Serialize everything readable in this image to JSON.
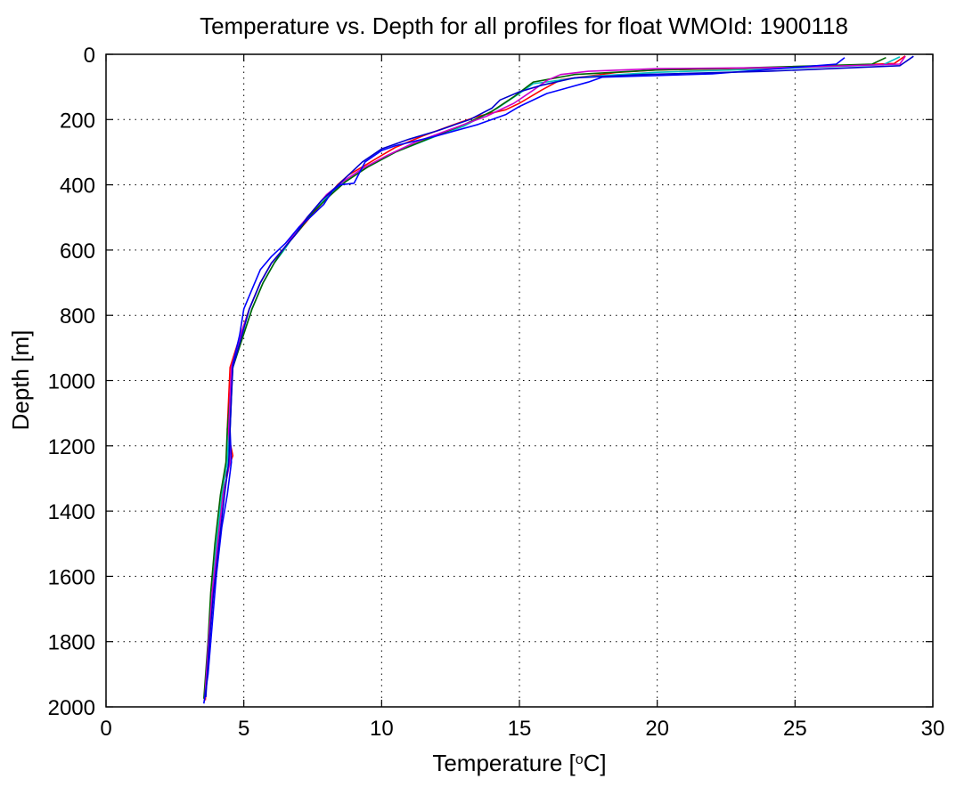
{
  "chart_data": {
    "type": "line",
    "title": "Temperature vs. Depth for all profiles for float WMOId: 1900118",
    "xlabel": "Temperature [°C]",
    "xlabel_parts": {
      "main": "Temperature [",
      "sup": "o",
      "end": "C]"
    },
    "ylabel": "Depth [m]",
    "xlim": [
      0,
      30
    ],
    "ylim": [
      0,
      2000
    ],
    "y_reversed": true,
    "grid": true,
    "grid_style": "dotted",
    "x_ticks": [
      "0",
      "5",
      "10",
      "15",
      "20",
      "25",
      "30"
    ],
    "y_ticks": [
      "0",
      "200",
      "400",
      "600",
      "800",
      "1000",
      "1200",
      "1400",
      "1600",
      "1800",
      "2000"
    ],
    "series": [
      {
        "color": "#ff0000",
        "points": [
          [
            29.0,
            5
          ],
          [
            28.6,
            28
          ],
          [
            25.0,
            40
          ],
          [
            20.0,
            48
          ],
          [
            18.5,
            56
          ],
          [
            16.5,
            78
          ],
          [
            15.8,
            110
          ],
          [
            15.0,
            150
          ],
          [
            14.5,
            170
          ],
          [
            13.5,
            190
          ],
          [
            12.8,
            210
          ],
          [
            11.5,
            250
          ],
          [
            10.5,
            285
          ],
          [
            10.0,
            310
          ],
          [
            9.5,
            335
          ],
          [
            8.8,
            370
          ],
          [
            8.4,
            400
          ],
          [
            8.0,
            440
          ],
          [
            7.6,
            480
          ],
          [
            7.2,
            520
          ],
          [
            6.8,
            560
          ],
          [
            6.4,
            600
          ],
          [
            6.0,
            640
          ],
          [
            5.6,
            700
          ],
          [
            5.2,
            780
          ],
          [
            4.8,
            880
          ],
          [
            4.5,
            960
          ],
          [
            4.45,
            1050
          ],
          [
            4.4,
            1150
          ],
          [
            4.6,
            1230
          ],
          [
            4.3,
            1300
          ],
          [
            4.1,
            1450
          ],
          [
            3.9,
            1600
          ],
          [
            3.75,
            1800
          ],
          [
            3.6,
            1980
          ]
        ]
      },
      {
        "color": "#00bfbf",
        "points": [
          [
            28.8,
            8
          ],
          [
            28.2,
            32
          ],
          [
            24.0,
            45
          ],
          [
            20.0,
            55
          ],
          [
            17.5,
            68
          ],
          [
            15.5,
            90
          ],
          [
            15.0,
            120
          ],
          [
            14.2,
            165
          ],
          [
            13.0,
            220
          ],
          [
            12.0,
            250
          ],
          [
            10.5,
            300
          ],
          [
            9.4,
            350
          ],
          [
            8.6,
            395
          ],
          [
            8.0,
            440
          ],
          [
            7.4,
            490
          ],
          [
            6.9,
            545
          ],
          [
            6.5,
            595
          ],
          [
            6.1,
            640
          ],
          [
            5.7,
            700
          ],
          [
            5.3,
            780
          ],
          [
            4.9,
            880
          ],
          [
            4.6,
            960
          ],
          [
            4.5,
            1050
          ],
          [
            4.45,
            1150
          ],
          [
            4.4,
            1250
          ],
          [
            4.2,
            1350
          ],
          [
            4.0,
            1500
          ],
          [
            3.85,
            1650
          ],
          [
            3.7,
            1800
          ],
          [
            3.6,
            1970
          ]
        ]
      },
      {
        "color": "#006400",
        "points": [
          [
            28.3,
            10
          ],
          [
            27.8,
            30
          ],
          [
            23.0,
            42
          ],
          [
            20.0,
            48
          ],
          [
            17.0,
            62
          ],
          [
            15.5,
            85
          ],
          [
            14.8,
            130
          ],
          [
            14.0,
            175
          ],
          [
            13.0,
            215
          ],
          [
            11.8,
            255
          ],
          [
            10.5,
            300
          ],
          [
            9.5,
            345
          ],
          [
            8.7,
            390
          ],
          [
            8.1,
            435
          ],
          [
            7.5,
            485
          ],
          [
            7.0,
            540
          ],
          [
            6.5,
            590
          ],
          [
            6.1,
            640
          ],
          [
            5.7,
            700
          ],
          [
            5.3,
            780
          ],
          [
            4.95,
            870
          ],
          [
            4.6,
            960
          ],
          [
            4.5,
            1050
          ],
          [
            4.4,
            1150
          ],
          [
            4.35,
            1250
          ],
          [
            4.15,
            1350
          ],
          [
            3.95,
            1500
          ],
          [
            3.8,
            1650
          ],
          [
            3.7,
            1800
          ],
          [
            3.55,
            1975
          ]
        ]
      },
      {
        "color": "#cc00cc",
        "points": [
          [
            29.0,
            6
          ],
          [
            28.8,
            30
          ],
          [
            25.0,
            40
          ],
          [
            20.0,
            44
          ],
          [
            17.5,
            52
          ],
          [
            16.5,
            62
          ],
          [
            16.0,
            80
          ],
          [
            15.5,
            110
          ],
          [
            14.8,
            150
          ],
          [
            13.8,
            190
          ],
          [
            12.5,
            230
          ],
          [
            11.2,
            270
          ],
          [
            10.2,
            310
          ],
          [
            9.3,
            350
          ],
          [
            8.6,
            390
          ],
          [
            8.0,
            430
          ],
          [
            7.5,
            480
          ],
          [
            7.0,
            530
          ],
          [
            6.5,
            590
          ],
          [
            6.0,
            640
          ],
          [
            5.6,
            700
          ],
          [
            5.2,
            780
          ],
          [
            4.85,
            870
          ],
          [
            4.55,
            960
          ],
          [
            4.5,
            1050
          ],
          [
            4.45,
            1150
          ],
          [
            4.5,
            1250
          ],
          [
            4.25,
            1350
          ],
          [
            4.05,
            1500
          ],
          [
            3.85,
            1650
          ],
          [
            3.72,
            1800
          ],
          [
            3.58,
            1980
          ]
        ]
      },
      {
        "color": "#0000ff",
        "points": [
          [
            26.8,
            10
          ],
          [
            26.5,
            30
          ],
          [
            22.0,
            60
          ],
          [
            18.0,
            70
          ],
          [
            17.5,
            85
          ],
          [
            16.0,
            120
          ],
          [
            15.0,
            160
          ],
          [
            14.5,
            185
          ],
          [
            13.5,
            215
          ],
          [
            12.0,
            250
          ],
          [
            11.0,
            270
          ],
          [
            10.5,
            280
          ],
          [
            10.0,
            295
          ],
          [
            9.4,
            330
          ],
          [
            9.0,
            395
          ],
          [
            8.5,
            400
          ],
          [
            8.2,
            420
          ],
          [
            7.9,
            460
          ],
          [
            7.4,
            500
          ],
          [
            7.0,
            530
          ],
          [
            6.5,
            580
          ],
          [
            6.0,
            620
          ],
          [
            5.6,
            660
          ],
          [
            5.3,
            720
          ],
          [
            5.0,
            780
          ],
          [
            4.85,
            860
          ],
          [
            4.6,
            950
          ],
          [
            4.55,
            1050
          ],
          [
            4.5,
            1150
          ],
          [
            4.55,
            1250
          ],
          [
            4.4,
            1350
          ],
          [
            4.2,
            1450
          ],
          [
            4.0,
            1600
          ],
          [
            3.85,
            1750
          ],
          [
            3.7,
            1900
          ],
          [
            3.55,
            1990
          ]
        ]
      },
      {
        "color": "#0000cc",
        "points": [
          [
            29.3,
            6
          ],
          [
            28.8,
            35
          ],
          [
            24.0,
            52
          ],
          [
            19.5,
            62
          ],
          [
            17.0,
            72
          ],
          [
            15.8,
            95
          ],
          [
            15.0,
            115
          ],
          [
            14.3,
            140
          ],
          [
            14.0,
            165
          ],
          [
            13.2,
            200
          ],
          [
            12.0,
            235
          ],
          [
            11.0,
            260
          ],
          [
            10.0,
            290
          ],
          [
            9.3,
            330
          ],
          [
            8.8,
            370
          ],
          [
            8.3,
            410
          ],
          [
            7.8,
            450
          ],
          [
            7.3,
            500
          ],
          [
            6.9,
            550
          ],
          [
            6.4,
            600
          ],
          [
            6.0,
            640
          ],
          [
            5.6,
            700
          ],
          [
            5.2,
            780
          ],
          [
            4.9,
            870
          ],
          [
            4.6,
            960
          ],
          [
            4.55,
            1050
          ],
          [
            4.5,
            1150
          ],
          [
            4.45,
            1250
          ],
          [
            4.3,
            1350
          ],
          [
            4.1,
            1500
          ],
          [
            3.9,
            1650
          ],
          [
            3.75,
            1800
          ],
          [
            3.62,
            1970
          ]
        ]
      }
    ]
  }
}
